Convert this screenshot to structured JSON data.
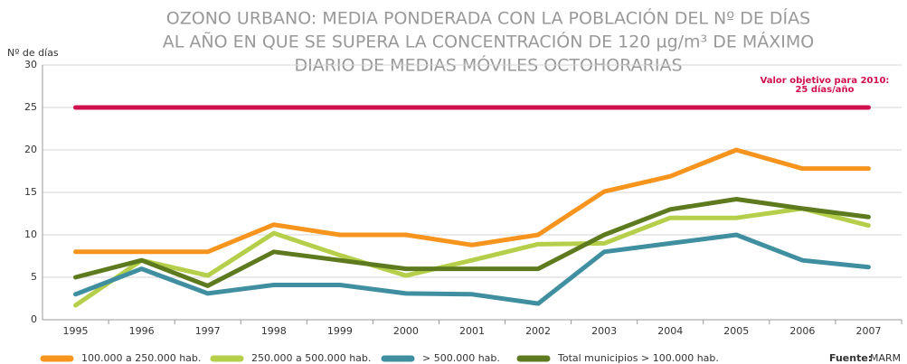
{
  "chart_data": {
    "type": "line",
    "title": [
      "OZONO URBANO: MEDIA PONDERADA CON LA POBLACIÓN DEL Nº DE DÍAS",
      "AL AÑO EN QUE SE SUPERA LA CONCENTRACIÓN DE 120 µg/m³ DE MÁXIMO",
      "DIARIO DE MEDIAS MÓVILES OCTOHORARIAS"
    ],
    "y_label": "Nº de días",
    "categories": [
      "1995",
      "1996",
      "1997",
      "1998",
      "1999",
      "2000",
      "2001",
      "2002",
      "2003",
      "2004",
      "2005",
      "2006",
      "2007"
    ],
    "series": [
      {
        "name": "100.000 a 250.000 hab.",
        "color": "#f7941d",
        "values": [
          8,
          8,
          8,
          11.2,
          10,
          10,
          8.8,
          10,
          15.1,
          16.9,
          20,
          17.8,
          17.8
        ]
      },
      {
        "name": "250.000 a 500.000 hab.",
        "color": "#b5cf4a",
        "values": [
          1.7,
          7,
          5.2,
          10.2,
          7.6,
          5.2,
          7,
          8.9,
          9,
          12,
          12,
          13.1,
          11.1
        ]
      },
      {
        "name": "> 500.000 hab.",
        "color": "#3f8fa0",
        "values": [
          3,
          6,
          3.1,
          4.1,
          4.1,
          3.1,
          3,
          1.9,
          8,
          9,
          10,
          7,
          6.2
        ]
      },
      {
        "name": "Total municipios > 100.000 hab.",
        "color": "#5e7a1f",
        "values": [
          5,
          7,
          4,
          8,
          7,
          6,
          6,
          6,
          10,
          13,
          14.2,
          13.1,
          12.1
        ]
      }
    ],
    "target": {
      "value": 25,
      "color": "#d0104c",
      "label": [
        "Valor objetivo para 2010:",
        "25 días/año"
      ]
    },
    "ylim": [
      0,
      30
    ],
    "yticks": [
      0,
      5,
      10,
      15,
      20,
      25,
      30
    ],
    "grid": true,
    "source": [
      "Fuente:",
      "MARM"
    ]
  }
}
